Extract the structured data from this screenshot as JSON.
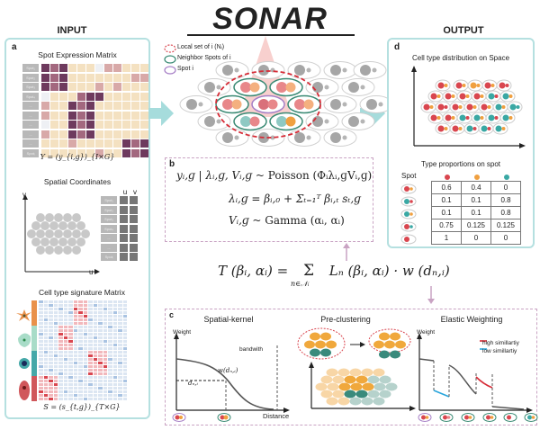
{
  "title": "SONAR",
  "input_header": "INPUT",
  "output_header": "OUTPUT",
  "panel_a": {
    "label": "a",
    "expr_title": "Spot Expression Matrix",
    "expr_formula": "Y = (y_{i,g})_{I×G}",
    "expr_rows": [
      "Spot₁",
      "Spot₂",
      "Spot₃",
      "Spot₄",
      "...",
      "...",
      "...",
      "...",
      "...",
      "Spotᵢ"
    ],
    "spatial_title": "Spatial Coordinates",
    "spatial_axis_x": "u",
    "spatial_axis_y": "v",
    "spatial_cols": [
      "u",
      "v"
    ],
    "spatial_rows": [
      "Spot₁",
      "Spot₂",
      "Spot₃",
      "Spot₄",
      "...",
      "...",
      "Spotᵢ"
    ],
    "sig_title": "Cell type signature Matrix",
    "sig_formula": "S = (s_{t,g})_{T×G}",
    "cell_types": [
      {
        "name": "star-cell",
        "color": "#e9914a"
      },
      {
        "name": "green-cell",
        "color": "#a8dcc8"
      },
      {
        "name": "teal-cell",
        "color": "#45a8a8"
      },
      {
        "name": "red-cell",
        "color": "#d0575b"
      }
    ]
  },
  "legend": {
    "local_set": "Local set of i (Nᵢ)",
    "neighbor": "Neighbor Spots of i",
    "spot": "Spot i"
  },
  "panel_b": {
    "label": "b",
    "eq1": "y_{i,g} | λ_{i,g}, V_{i,g} ~ Poisson (Φᵢ λ_{i,g} V_{i,g})",
    "eq1_lhs": "yᵢ,ɡ | λᵢ,ɡ, Vᵢ,ɡ ~ ",
    "eq1_rhs": "Poisson (Φᵢλᵢ,ɡVᵢ,ɡ)",
    "eq2": "λᵢ,ɡ = βᵢ,₀ + Σₜ₌₁ᵀ βᵢ,ₜ sₜ,ɡ",
    "eq3_lhs": "Vᵢ,ɡ ~ ",
    "eq3_rhs": "Gamma (αᵢ, αᵢ)"
  },
  "main_equation": {
    "lhs": "T (βᵢ, αᵢ) = ",
    "sum": "Σ",
    "sub": "n∈𝒩ᵢ",
    "rhs": "Lₙ (βᵢ, αᵢ) · w (dₙ,ᵢ)"
  },
  "panel_c": {
    "label": "c",
    "kernel_title": "Spatial-kernel",
    "kernel_ylabel": "Weight",
    "kernel_xlabel": "Distance",
    "kernel_bandwidth": "bandwith",
    "kernel_w": "w(dₙ,ᵢ)",
    "kernel_d": "dₙ,ᵢ",
    "precluster_title": "Pre-clustering",
    "elastic_title": "Elastic Weighting",
    "elastic_ylabel": "Weight",
    "legend_high": "high simillartiy",
    "legend_low": "low  simillartiy",
    "legend_high_color": "#d62b36",
    "legend_low_color": "#2aa6dc"
  },
  "panel_d": {
    "label": "d",
    "dist_title": "Cell type distribution on Space",
    "prop_title": "Type proportions on spot",
    "spot_header": "Spot",
    "type_colors": [
      "#d9464f",
      "#f0a040",
      "#3aa8a4"
    ],
    "rows": [
      [
        "0.6",
        "0.4",
        "0"
      ],
      [
        "0.1",
        "0.1",
        "0.8"
      ],
      [
        "0.1",
        "0.1",
        "0.8"
      ],
      [
        "0.75",
        "0.125",
        "0.125"
      ],
      [
        "1",
        "0",
        "0"
      ]
    ]
  },
  "colors": {
    "panel_border": "#b5e0e0",
    "arrow": "#a6dcdc",
    "dashed": "#c9a3c3",
    "red": "#d9464f",
    "orange": "#f0a040",
    "teal": "#3aa8a4"
  }
}
